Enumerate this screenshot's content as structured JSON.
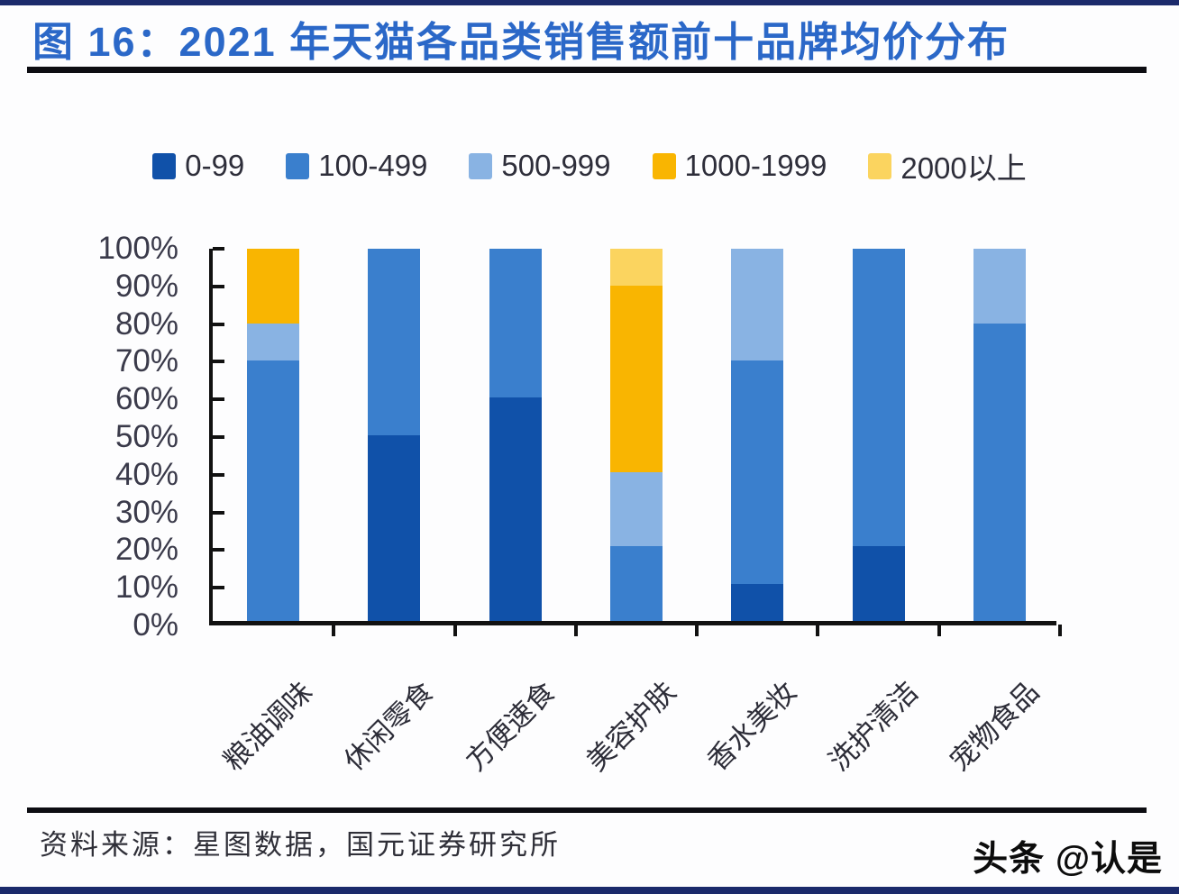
{
  "title": "图 16：2021 年天猫各品类销售额前十品牌均价分布",
  "source": "资料来源：星图数据，国元证券研究所",
  "watermark": "头条 @认是",
  "colors": {
    "title_blue": "#2b68c8",
    "navy_border": "#1b2a6b",
    "axis_black": "#111111",
    "text_dark": "#2e2e3a"
  },
  "chart_data": {
    "type": "bar",
    "stacked": true,
    "unit": "percent of top-10 brands",
    "title": "2021 年天猫各品类销售额前十品牌均价分布",
    "categories": [
      "粮油调味",
      "休闲零食",
      "方便速食",
      "美容护肤",
      "香水美妆",
      "洗护清洁",
      "宠物食品"
    ],
    "series": [
      {
        "name": "0-99",
        "color": "#1051a9",
        "values": [
          0,
          50,
          60,
          0,
          10,
          20,
          0
        ]
      },
      {
        "name": "100-499",
        "color": "#3a7fcd",
        "values": [
          70,
          50,
          40,
          20,
          60,
          80,
          80
        ]
      },
      {
        "name": "500-999",
        "color": "#89b3e3",
        "values": [
          10,
          0,
          0,
          20,
          30,
          0,
          20
        ]
      },
      {
        "name": "1000-1999",
        "color": "#f9b501",
        "values": [
          20,
          0,
          0,
          50,
          0,
          0,
          0
        ]
      },
      {
        "name": "2000以上",
        "color": "#fbd45f",
        "values": [
          0,
          0,
          0,
          10,
          0,
          0,
          0
        ]
      }
    ],
    "xlabel": "",
    "ylabel": "",
    "ylim": [
      0,
      100
    ],
    "yticks": [
      "0%",
      "10%",
      "20%",
      "30%",
      "40%",
      "50%",
      "60%",
      "70%",
      "80%",
      "90%",
      "100%"
    ],
    "grid": false,
    "legend_position": "top"
  }
}
